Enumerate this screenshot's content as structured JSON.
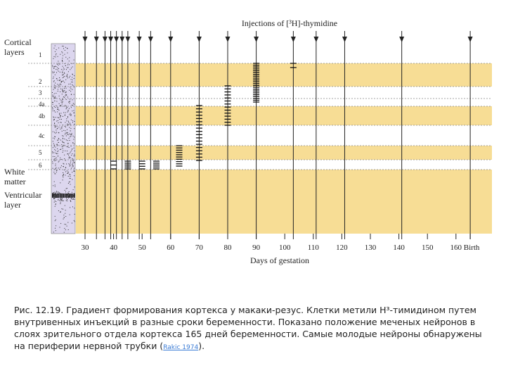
{
  "chart_data": {
    "type": "scatter",
    "title": "Injections of [³H]-thymidine",
    "xlabel": "Days of gestation",
    "x_ticks": [
      "30",
      "40",
      "50",
      "60",
      "70",
      "80",
      "90",
      "100",
      "110",
      "120",
      "130",
      "140",
      "150",
      "160",
      "Birth"
    ],
    "xlim": [
      27,
      167
    ],
    "left_label_cortical": [
      "Cortical",
      "layers"
    ],
    "layers": [
      "1",
      "2",
      "3",
      "4a",
      "4b",
      "4c",
      "5",
      "6"
    ],
    "left_label_white": [
      "White",
      "matter"
    ],
    "left_label_ventricular": [
      "Ventricular",
      "layer"
    ],
    "injection_days": [
      30,
      34,
      37,
      39,
      41,
      43,
      45,
      49,
      53,
      60,
      70,
      80,
      90,
      103,
      111,
      121,
      141,
      165
    ],
    "labeled_clusters": [
      {
        "day": 40,
        "layer": "6",
        "count": 3
      },
      {
        "day": 45,
        "layer": "6",
        "count": 5
      },
      {
        "day": 50,
        "layer": "6",
        "count": 4
      },
      {
        "day": 55,
        "layer": "6",
        "count": 5
      },
      {
        "day": 63,
        "layer": "5-6",
        "count": 10
      },
      {
        "day": 70,
        "layer": "4b-5",
        "count": 18
      },
      {
        "day": 80,
        "layer": "3-4b",
        "count": 14
      },
      {
        "day": 90,
        "layer": "2-3",
        "count": 22
      },
      {
        "day": 103,
        "layer": "2",
        "count": 2
      }
    ]
  },
  "caption": {
    "text": "Рис. 12.19. Градиент формирования кортекса у макаки-резус. Клетки метили H³-тимидином путем внутривенных инъекций в разные сроки беременности. Показано положение меченых нейронов в слоях зрительного отдела кортекса 165 дней беременности. Самые молодые нейроны обнаружены на периферии нервной трубки (",
    "link": "Rakic 1974",
    "end": ")."
  },
  "colors": {
    "band": "#f7dd95",
    "strip": "#dcd6ee",
    "line": "#222222"
  }
}
